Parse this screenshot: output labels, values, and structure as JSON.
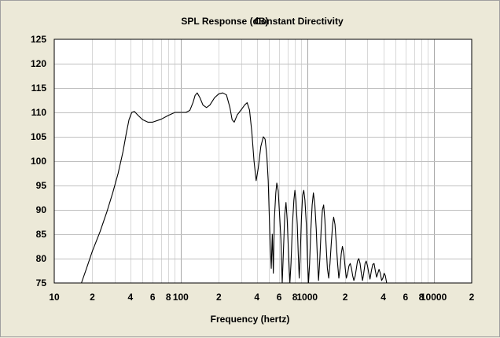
{
  "chart_data": {
    "type": "line",
    "title": "SPL Response (dB)",
    "subtitle": "Constant Directivity",
    "xlabel": "Frequency (hertz)",
    "ylabel": "",
    "x_scale": "log",
    "xlim": [
      10,
      20000
    ],
    "ylim": [
      75,
      125
    ],
    "grid": true,
    "y_ticks": [
      75,
      80,
      85,
      90,
      95,
      100,
      105,
      110,
      115,
      120,
      125
    ],
    "x_tick_labels": [
      {
        "value": 10,
        "label": "10"
      },
      {
        "value": 20,
        "label": "2"
      },
      {
        "value": 40,
        "label": "4"
      },
      {
        "value": 60,
        "label": "6"
      },
      {
        "value": 80,
        "label": "8"
      },
      {
        "value": 100,
        "label": "100"
      },
      {
        "value": 200,
        "label": "2"
      },
      {
        "value": 400,
        "label": "4"
      },
      {
        "value": 600,
        "label": "6"
      },
      {
        "value": 800,
        "label": "8"
      },
      {
        "value": 1000,
        "label": "1000"
      },
      {
        "value": 2000,
        "label": "2"
      },
      {
        "value": 4000,
        "label": "4"
      },
      {
        "value": 6000,
        "label": "6"
      },
      {
        "value": 8000,
        "label": "8"
      },
      {
        "value": 10000,
        "label": "10000"
      },
      {
        "value": 20000,
        "label": "2"
      }
    ],
    "series": [
      {
        "color": "#000000",
        "points": [
          [
            16.4,
            75
          ],
          [
            18,
            78
          ],
          [
            20,
            81.5
          ],
          [
            23,
            85.5
          ],
          [
            26,
            89.5
          ],
          [
            29,
            93.5
          ],
          [
            32,
            97.5
          ],
          [
            35,
            102
          ],
          [
            37,
            105.5
          ],
          [
            39,
            108.5
          ],
          [
            41,
            110
          ],
          [
            43,
            110.2
          ],
          [
            46,
            109.4
          ],
          [
            50,
            108.5
          ],
          [
            55,
            108
          ],
          [
            60,
            108
          ],
          [
            70,
            108.6
          ],
          [
            80,
            109.4
          ],
          [
            90,
            110
          ],
          [
            100,
            110
          ],
          [
            110,
            110
          ],
          [
            118,
            110.4
          ],
          [
            125,
            112
          ],
          [
            130,
            113.5
          ],
          [
            135,
            114
          ],
          [
            142,
            113
          ],
          [
            150,
            111.5
          ],
          [
            160,
            111
          ],
          [
            170,
            111.5
          ],
          [
            185,
            113
          ],
          [
            200,
            113.8
          ],
          [
            215,
            114
          ],
          [
            230,
            113.6
          ],
          [
            245,
            111
          ],
          [
            255,
            108.5
          ],
          [
            265,
            108
          ],
          [
            280,
            109.5
          ],
          [
            300,
            110.5
          ],
          [
            320,
            111.5
          ],
          [
            335,
            112
          ],
          [
            350,
            110.5
          ],
          [
            365,
            106
          ],
          [
            380,
            100
          ],
          [
            395,
            96
          ],
          [
            410,
            98.5
          ],
          [
            430,
            103
          ],
          [
            450,
            105
          ],
          [
            465,
            104.5
          ],
          [
            480,
            101
          ],
          [
            492,
            96
          ],
          [
            500,
            90
          ],
          [
            510,
            83
          ],
          [
            520,
            78
          ],
          [
            530,
            85
          ],
          [
            540,
            77
          ],
          [
            550,
            88
          ],
          [
            565,
            93.5
          ],
          [
            575,
            95.5
          ],
          [
            590,
            94
          ],
          [
            605,
            89
          ],
          [
            620,
            84
          ],
          [
            635,
            75
          ],
          [
            650,
            82
          ],
          [
            665,
            89
          ],
          [
            680,
            91.5
          ],
          [
            695,
            88
          ],
          [
            710,
            82
          ],
          [
            730,
            75
          ],
          [
            745,
            79
          ],
          [
            765,
            87
          ],
          [
            785,
            92
          ],
          [
            800,
            94
          ],
          [
            815,
            92
          ],
          [
            835,
            87
          ],
          [
            850,
            81
          ],
          [
            865,
            76
          ],
          [
            880,
            80
          ],
          [
            900,
            88
          ],
          [
            920,
            93
          ],
          [
            940,
            94
          ],
          [
            960,
            92
          ],
          [
            985,
            87
          ],
          [
            1005,
            80
          ],
          [
            1025,
            75
          ],
          [
            1045,
            79
          ],
          [
            1070,
            86
          ],
          [
            1095,
            91
          ],
          [
            1120,
            93.5
          ],
          [
            1150,
            91
          ],
          [
            1180,
            86
          ],
          [
            1205,
            80
          ],
          [
            1230,
            75.5
          ],
          [
            1260,
            80
          ],
          [
            1290,
            86
          ],
          [
            1320,
            90
          ],
          [
            1350,
            91
          ],
          [
            1380,
            88
          ],
          [
            1410,
            83
          ],
          [
            1445,
            78
          ],
          [
            1480,
            76
          ],
          [
            1515,
            79
          ],
          [
            1550,
            83
          ],
          [
            1590,
            87
          ],
          [
            1620,
            88.5
          ],
          [
            1660,
            87
          ],
          [
            1700,
            83
          ],
          [
            1740,
            79
          ],
          [
            1780,
            76
          ],
          [
            1820,
            78
          ],
          [
            1860,
            81
          ],
          [
            1900,
            82.5
          ],
          [
            1950,
            81
          ],
          [
            2000,
            78
          ],
          [
            2040,
            76
          ],
          [
            2090,
            77
          ],
          [
            2140,
            78.5
          ],
          [
            2190,
            79
          ],
          [
            2240,
            78
          ],
          [
            2290,
            76.5
          ],
          [
            2340,
            75.5
          ],
          [
            2400,
            76.5
          ],
          [
            2450,
            78
          ],
          [
            2500,
            79.5
          ],
          [
            2560,
            80
          ],
          [
            2620,
            79
          ],
          [
            2680,
            77
          ],
          [
            2740,
            75.5
          ],
          [
            2800,
            77
          ],
          [
            2870,
            79
          ],
          [
            2930,
            79.5
          ],
          [
            3000,
            78.5
          ],
          [
            3070,
            77
          ],
          [
            3140,
            75.8
          ],
          [
            3220,
            77.5
          ],
          [
            3300,
            78.8
          ],
          [
            3380,
            79
          ],
          [
            3460,
            77.5
          ],
          [
            3540,
            76.2
          ],
          [
            3620,
            77
          ],
          [
            3700,
            77.8
          ],
          [
            3790,
            77
          ],
          [
            3880,
            75.5
          ],
          [
            3970,
            76
          ],
          [
            4060,
            77
          ],
          [
            4150,
            76.5
          ],
          [
            4250,
            75
          ]
        ]
      }
    ]
  }
}
